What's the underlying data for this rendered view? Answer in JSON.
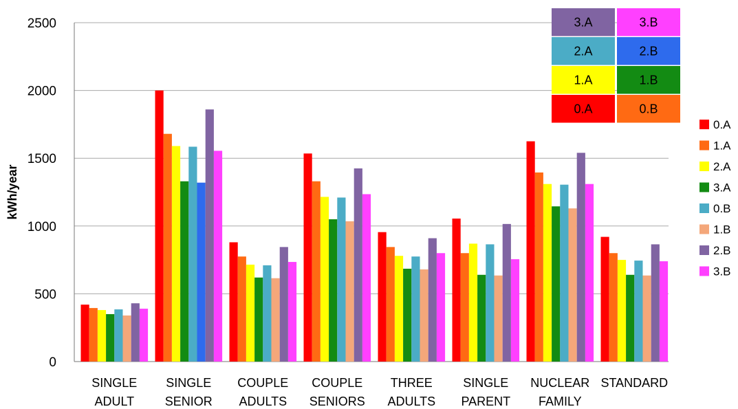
{
  "chart_data": {
    "type": "bar",
    "ylabel": "kWh/year",
    "xlabel": "",
    "ylim": [
      0,
      2500
    ],
    "yticks": [
      0,
      500,
      1000,
      1500,
      2000,
      2500
    ],
    "grid": true,
    "legend_position": "right",
    "categories": [
      [
        "SINGLE",
        "ADULT"
      ],
      [
        "SINGLE",
        "SENIOR"
      ],
      [
        "COUPLE",
        "ADULTS"
      ],
      [
        "COUPLE",
        "SENIORS"
      ],
      [
        "THREE",
        "ADULTS"
      ],
      [
        "SINGLE",
        "PARENT"
      ],
      [
        "NUCLEAR",
        "FAMILY"
      ],
      [
        "STANDARD"
      ]
    ],
    "series": [
      {
        "name": "0.A",
        "color": "#ff0000",
        "values": [
          420,
          2000,
          880,
          1535,
          955,
          1055,
          1625,
          920
        ]
      },
      {
        "name": "1.A",
        "color": "#ff6a13",
        "values": [
          395,
          1680,
          775,
          1330,
          845,
          800,
          1395,
          800
        ]
      },
      {
        "name": "2.A",
        "color": "#ffff00",
        "values": [
          380,
          1590,
          715,
          1215,
          780,
          870,
          1310,
          750
        ]
      },
      {
        "name": "3.A",
        "color": "#138b13",
        "values": [
          350,
          1330,
          620,
          1050,
          685,
          640,
          1145,
          640
        ]
      },
      {
        "name": "0.B",
        "color": "#4bacc6",
        "values": [
          385,
          1585,
          710,
          1210,
          775,
          865,
          1305,
          745
        ]
      },
      {
        "name": "1.B",
        "color": "#f4a77a",
        "values": [
          340,
          1320,
          615,
          1035,
          680,
          635,
          1130,
          635
        ]
      },
      {
        "name": "2.B",
        "color": "#8064a2",
        "values": [
          430,
          1860,
          845,
          1425,
          910,
          1015,
          1540,
          865
        ]
      },
      {
        "name": "3.B",
        "color": "#ff40ff",
        "values": [
          390,
          1555,
          735,
          1235,
          800,
          755,
          1310,
          740
        ]
      }
    ],
    "annotation_key": {
      "rows": [
        [
          {
            "label": "3.A",
            "color": "#8064a2"
          },
          {
            "label": "3.B",
            "color": "#ff40ff"
          }
        ],
        [
          {
            "label": "2.A",
            "color": "#4bacc6"
          },
          {
            "label": "2.B",
            "color": "#2e6bed"
          }
        ],
        [
          {
            "label": "1.A",
            "color": "#ffff00"
          },
          {
            "label": "1.B",
            "color": "#138b13"
          }
        ],
        [
          {
            "label": "0.A",
            "color": "#ff0000"
          },
          {
            "label": "0.B",
            "color": "#ff6a13"
          }
        ]
      ]
    },
    "override_bars": [
      {
        "category_index": 1,
        "series_index": 5,
        "color": "#2e6bed"
      }
    ]
  }
}
